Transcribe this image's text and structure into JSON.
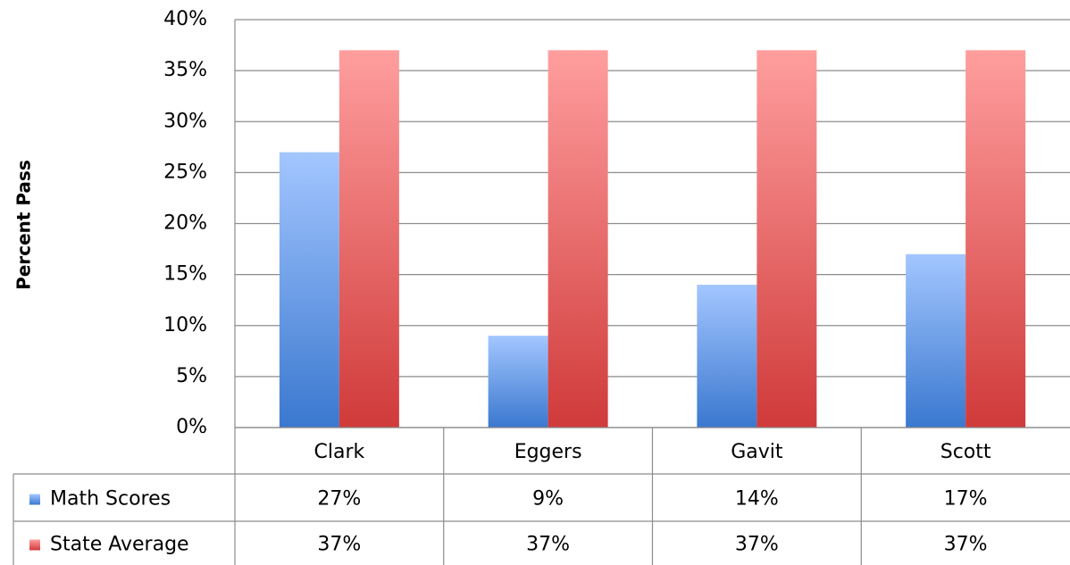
{
  "chart_data": {
    "type": "bar",
    "y_label": "Percent Pass",
    "categories": [
      "Clark",
      "Eggers",
      "Gavit",
      "Scott"
    ],
    "series": [
      {
        "name": "Math Scores",
        "color": "#4f86d8",
        "values": [
          27,
          9,
          14,
          17
        ],
        "value_labels": [
          "27%",
          "9%",
          "14%",
          "17%"
        ]
      },
      {
        "name": "State Average",
        "color": "#e05a5a",
        "values": [
          37,
          37,
          37,
          37
        ],
        "value_labels": [
          "37%",
          "37%",
          "37%",
          "37%"
        ]
      }
    ],
    "ylim": [
      0,
      40
    ],
    "yticks": [
      {
        "value": 0,
        "label": "0%"
      },
      {
        "value": 5,
        "label": "5%"
      },
      {
        "value": 10,
        "label": "10%"
      },
      {
        "value": 15,
        "label": "15%"
      },
      {
        "value": 20,
        "label": "20%"
      },
      {
        "value": 25,
        "label": "25%"
      },
      {
        "value": 30,
        "label": "30%"
      },
      {
        "value": 35,
        "label": "35%"
      },
      {
        "value": 40,
        "label": "40%"
      }
    ],
    "grid": true,
    "legend": "table"
  }
}
